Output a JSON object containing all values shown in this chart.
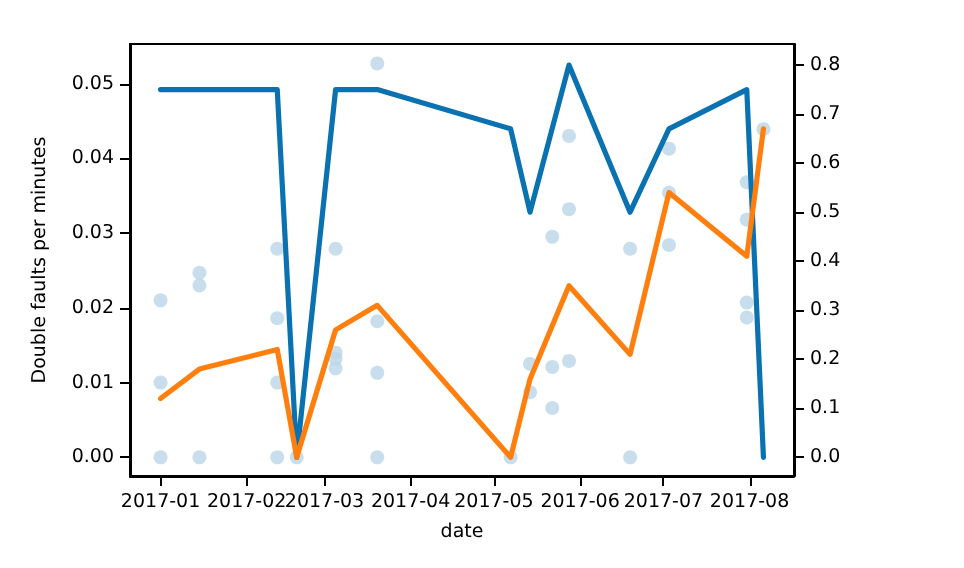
{
  "chart_data": {
    "type": "line",
    "xlabel": "date",
    "ylabel": "Double faults per minutes",
    "xlim": [
      "2016-12-21",
      "2017-08-17"
    ],
    "xticks": [
      "2017-01",
      "2017-02",
      "2017-03",
      "2017-04",
      "2017-05",
      "2017-06",
      "2017-07",
      "2017-08"
    ],
    "ylim": [
      -0.0025,
      0.0553
    ],
    "yticks": [
      {
        "value": 0,
        "label": "0.00"
      },
      {
        "value": 0.01,
        "label": "0.01"
      },
      {
        "value": 0.02,
        "label": "0.02"
      },
      {
        "value": 0.03,
        "label": "0.03"
      },
      {
        "value": 0.04,
        "label": "0.04"
      },
      {
        "value": 0.05,
        "label": "0.05"
      }
    ],
    "y2lim": [
      -0.038,
      0.843
    ],
    "y2ticks": [
      {
        "value": 0,
        "label": "0.0"
      },
      {
        "value": 0.1,
        "label": "0.1"
      },
      {
        "value": 0.2,
        "label": "0.2"
      },
      {
        "value": 0.3,
        "label": "0.3"
      },
      {
        "value": 0.4,
        "label": "0.4"
      },
      {
        "value": 0.5,
        "label": "0.5"
      },
      {
        "value": 0.6,
        "label": "0.6"
      },
      {
        "value": 0.7,
        "label": "0.7"
      },
      {
        "value": 0.8,
        "label": "0.8"
      }
    ],
    "grid": false,
    "series": [
      {
        "type": "scatter",
        "color": "#bcd6e8",
        "marker": "circle",
        "x": [
          "2017-01-01",
          "2017-01-01",
          "2017-01-01",
          "2017-01-15",
          "2017-01-15",
          "2017-01-15",
          "2017-02-12",
          "2017-02-12",
          "2017-02-12",
          "2017-02-12",
          "2017-02-19",
          "2017-03-05",
          "2017-03-05",
          "2017-03-05",
          "2017-03-05",
          "2017-03-20",
          "2017-03-20",
          "2017-03-20",
          "2017-03-20",
          "2017-05-07",
          "2017-05-14",
          "2017-05-14",
          "2017-05-22",
          "2017-05-22",
          "2017-05-22",
          "2017-05-28",
          "2017-05-28",
          "2017-05-28",
          "2017-06-19",
          "2017-06-19",
          "2017-07-03",
          "2017-07-03",
          "2017-07-03",
          "2017-07-31",
          "2017-07-31",
          "2017-07-31",
          "2017-07-31",
          "2017-08-06"
        ],
        "values": [
          0.021,
          0.01,
          0,
          0.0247,
          0.023,
          0,
          0.0279,
          0.0186,
          0.01,
          0,
          0,
          0.0279,
          0.014,
          0.0132,
          0.0119,
          0.0527,
          0.0182,
          0.0113,
          0,
          0,
          0.0125,
          0.0087,
          0.0295,
          0.0121,
          0.0066,
          0.043,
          0.0332,
          0.0129,
          0.0279,
          0,
          0.0413,
          0.0354,
          0.0284,
          0.0368,
          0.0318,
          0.0207,
          0.0187,
          0.0439
        ]
      },
      {
        "type": "line",
        "axis": "y2",
        "color": "#0a72b0",
        "marker": "none",
        "x": [
          "2017-01-01",
          "2017-02-12",
          "2017-02-19",
          "2017-03-05",
          "2017-03-20",
          "2017-05-07",
          "2017-05-14",
          "2017-05-28",
          "2017-06-19",
          "2017-07-03",
          "2017-07-31",
          "2017-08-06"
        ],
        "values": [
          0.75,
          0.75,
          0,
          0.75,
          0.75,
          0.67,
          0.5,
          0.8,
          0.5,
          0.67,
          0.75,
          0
        ]
      },
      {
        "type": "line",
        "axis": "y2",
        "color": "#ff7f0e",
        "marker": "none",
        "x": [
          "2017-01-01",
          "2017-01-15",
          "2017-02-12",
          "2017-02-19",
          "2017-03-05",
          "2017-03-20",
          "2017-05-07",
          "2017-05-14",
          "2017-05-28",
          "2017-06-19",
          "2017-07-03",
          "2017-07-31",
          "2017-08-06"
        ],
        "values": [
          0.12,
          0.18,
          0.22,
          0,
          0.26,
          0.31,
          0,
          0.16,
          0.35,
          0.21,
          0.54,
          0.41,
          0.67
        ]
      }
    ]
  }
}
